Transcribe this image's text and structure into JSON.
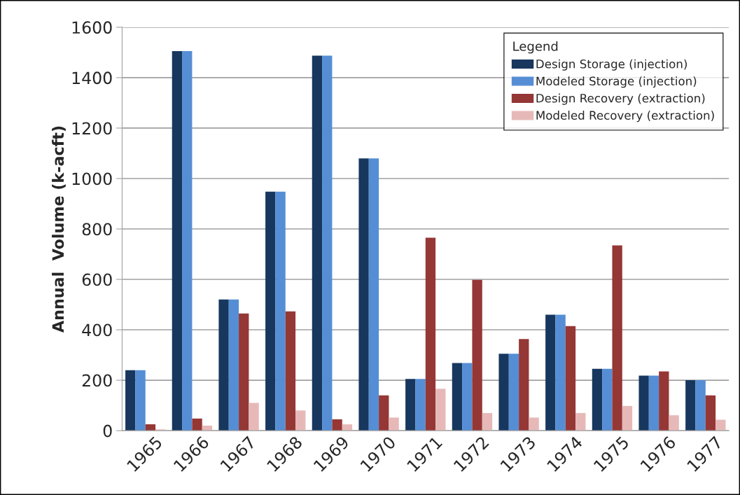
{
  "chart_data": {
    "type": "bar",
    "ylabel": "Annual  Volume (k-acft)",
    "legend_title": "Legend",
    "categories": [
      "1965",
      "1966",
      "1967",
      "1968",
      "1969",
      "1970",
      "1971",
      "1972",
      "1973",
      "1974",
      "1975",
      "1976",
      "1977"
    ],
    "series": [
      {
        "name": "Design Storage (injection)",
        "color": "#17375e",
        "values": [
          240,
          1505,
          520,
          948,
          1487,
          1080,
          205,
          268,
          305,
          460,
          245,
          218,
          200
        ]
      },
      {
        "name": "Modeled Storage (injection)",
        "color": "#558ed5",
        "values": [
          240,
          1505,
          520,
          948,
          1487,
          1080,
          205,
          268,
          305,
          460,
          245,
          218,
          200
        ]
      },
      {
        "name": "Design Recovery (extraction)",
        "color": "#953735",
        "values": [
          25,
          48,
          465,
          473,
          45,
          140,
          765,
          598,
          363,
          415,
          735,
          235,
          140
        ]
      },
      {
        "name": "Modeled Recovery (extraction)",
        "color": "#e6b9b8",
        "values": [
          5,
          20,
          110,
          80,
          25,
          52,
          166,
          70,
          52,
          70,
          98,
          61,
          43
        ]
      }
    ],
    "ylim": [
      0,
      1600
    ],
    "yticks": [
      0,
      200,
      400,
      600,
      800,
      1000,
      1200,
      1400,
      1600
    ],
    "grid": "y",
    "legend": "top right"
  }
}
